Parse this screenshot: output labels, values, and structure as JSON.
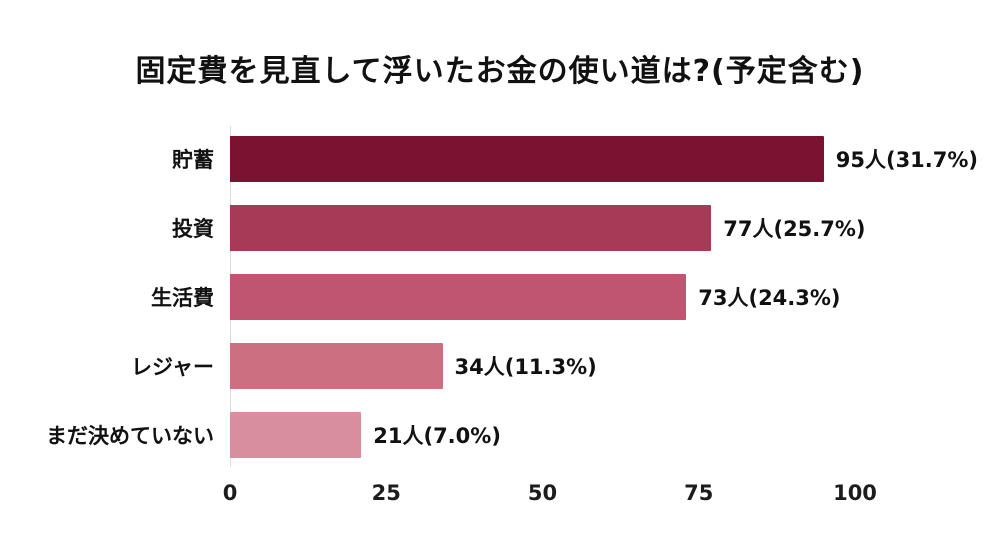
{
  "title": "固定費を見直して浮いたお金の使い道は?(予定含む)",
  "chart_data": {
    "type": "bar",
    "orientation": "horizontal",
    "title": "固定費を見直して浮いたお金の使い道は?(予定含む)",
    "categories": [
      "貯蓄",
      "投資",
      "生活費",
      "レジャー",
      "まだ決めていない"
    ],
    "values": [
      95,
      77,
      73,
      34,
      21
    ],
    "value_labels": [
      "95人(31.7%)",
      "77人(25.7%)",
      "73人(24.3%)",
      "34人(11.3%)",
      "21人(7.0%)"
    ],
    "bar_colors": [
      "#7a1231",
      "#a73b55",
      "#bf556e",
      "#cc6f81",
      "#d88e9c"
    ],
    "xlabel": "",
    "ylabel": "",
    "xlim": [
      0,
      100
    ],
    "xticks": [
      0,
      25,
      50,
      75,
      100
    ],
    "grid": false,
    "legend": false
  },
  "colors": {
    "background": "#ffffff",
    "text": "#111111",
    "axis_line": "#dcdcdc"
  }
}
